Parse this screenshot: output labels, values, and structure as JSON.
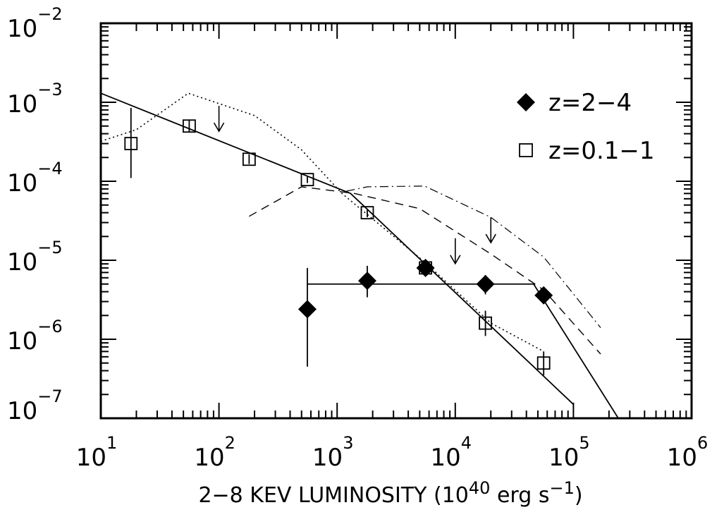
{
  "chart_data": {
    "type": "scatter",
    "title": "",
    "xlabel": {
      "prefix": "2−8 KEV LUMINOSITY (10",
      "exp": "40",
      "middle": " erg s",
      "exp2": "−1",
      "suffix": ")"
    },
    "ylabel": "",
    "xscale": "log",
    "yscale": "log",
    "xlim": [
      10,
      1000000
    ],
    "ylim": [
      1e-07,
      0.01
    ],
    "x_ticks": [
      {
        "value": 10,
        "base": "10",
        "exp": "1"
      },
      {
        "value": 100,
        "base": "10",
        "exp": "2"
      },
      {
        "value": 1000,
        "base": "10",
        "exp": "3"
      },
      {
        "value": 10000,
        "base": "10",
        "exp": "4"
      },
      {
        "value": 100000,
        "base": "10",
        "exp": "5"
      },
      {
        "value": 1000000,
        "base": "10",
        "exp": "6"
      }
    ],
    "y_ticks": [
      {
        "value": 0.01,
        "base": "10",
        "exp": "−2"
      },
      {
        "value": 0.001,
        "base": "10",
        "exp": "−3"
      },
      {
        "value": 0.0001,
        "base": "10",
        "exp": "−4"
      },
      {
        "value": 1e-05,
        "base": "10",
        "exp": "−5"
      },
      {
        "value": 1e-06,
        "base": "10",
        "exp": "−6"
      },
      {
        "value": 1e-07,
        "base": "10",
        "exp": "−7"
      }
    ],
    "grid": false,
    "legend_position": "top-right",
    "series": [
      {
        "name": "z=2−4",
        "marker": "filled-diamond",
        "points": [
          {
            "x": 560,
            "y": 2.4e-06,
            "ylo": 4.5e-07,
            "yhi": 8e-06
          },
          {
            "x": 1800,
            "y": 5.5e-06,
            "ylo": 3.4e-06,
            "yhi": 8.5e-06
          },
          {
            "x": 5600,
            "y": 8e-06,
            "ylo": 6.5e-06,
            "yhi": 1e-05
          },
          {
            "x": 18000,
            "y": 5e-06,
            "ylo": 3.7e-06,
            "yhi": 6.5e-06
          },
          {
            "x": 56000,
            "y": 3.6e-06,
            "ylo": 2.8e-06,
            "yhi": 4.5e-06
          }
        ]
      },
      {
        "name": "z=0.1−1",
        "marker": "open-square",
        "points": [
          {
            "x": 18,
            "y": 0.0003,
            "ylo": 0.00011,
            "yhi": 0.00085
          },
          {
            "x": 56,
            "y": 0.0005,
            "ylo": 0.00042,
            "yhi": 0.0006
          },
          {
            "x": 180,
            "y": 0.00019,
            "ylo": 0.000165,
            "yhi": 0.00022
          },
          {
            "x": 560,
            "y": 0.000105,
            "ylo": 9.5e-05,
            "yhi": 0.000117
          },
          {
            "x": 1800,
            "y": 4e-05,
            "ylo": 3.5e-05,
            "yhi": 4.5e-05
          },
          {
            "x": 5600,
            "y": 8e-06,
            "ylo": 6.8e-06,
            "yhi": 9.5e-06
          },
          {
            "x": 18000,
            "y": 1.6e-06,
            "ylo": 1.1e-06,
            "yhi": 2.3e-06
          },
          {
            "x": 56000,
            "y": 5e-07,
            "ylo": 3.5e-07,
            "yhi": 7e-07
          }
        ]
      }
    ],
    "horizontal_error_bar": {
      "x_from": 560,
      "x_to": 46000,
      "y": 5e-06
    },
    "curves": [
      {
        "style": "solid",
        "points": [
          [
            10,
            0.0013
          ],
          [
            1300,
            7e-05
          ],
          [
            100000,
            1.5e-07
          ]
        ]
      },
      {
        "style": "solid",
        "points": [
          [
            46000,
            5e-06
          ],
          [
            240000,
            1e-07
          ]
        ]
      },
      {
        "style": "dotted",
        "points": [
          [
            10,
            0.00032
          ],
          [
            20,
            0.00045
          ],
          [
            55,
            0.0013
          ],
          [
            200,
            0.00068
          ],
          [
            500,
            0.00025
          ],
          [
            1100,
            7e-05
          ],
          [
            5500,
            9.5e-06
          ],
          [
            20000,
            1.6e-06
          ],
          [
            56000,
            7e-07
          ]
        ]
      },
      {
        "style": "dashed",
        "points": [
          [
            180,
            3.6e-05
          ],
          [
            500,
            8.5e-05
          ],
          [
            1400,
            7e-05
          ],
          [
            5000,
            4.5e-05
          ],
          [
            20000,
            1.2e-05
          ],
          [
            56000,
            4.2e-06
          ],
          [
            170000,
            6.5e-07
          ]
        ]
      },
      {
        "style": "dash-dot",
        "points": [
          [
            1200,
            7.5e-05
          ],
          [
            1800,
            8.5e-05
          ],
          [
            5500,
            8.7e-05
          ],
          [
            20000,
            3.5e-05
          ],
          [
            56000,
            1.1e-05
          ],
          [
            170000,
            1.4e-06
          ]
        ]
      }
    ],
    "upper_limits": [
      {
        "x": 100,
        "y": 0.0009
      },
      {
        "x": 10000,
        "y": 1.9e-05
      },
      {
        "x": 20000,
        "y": 3.5e-05
      }
    ]
  }
}
